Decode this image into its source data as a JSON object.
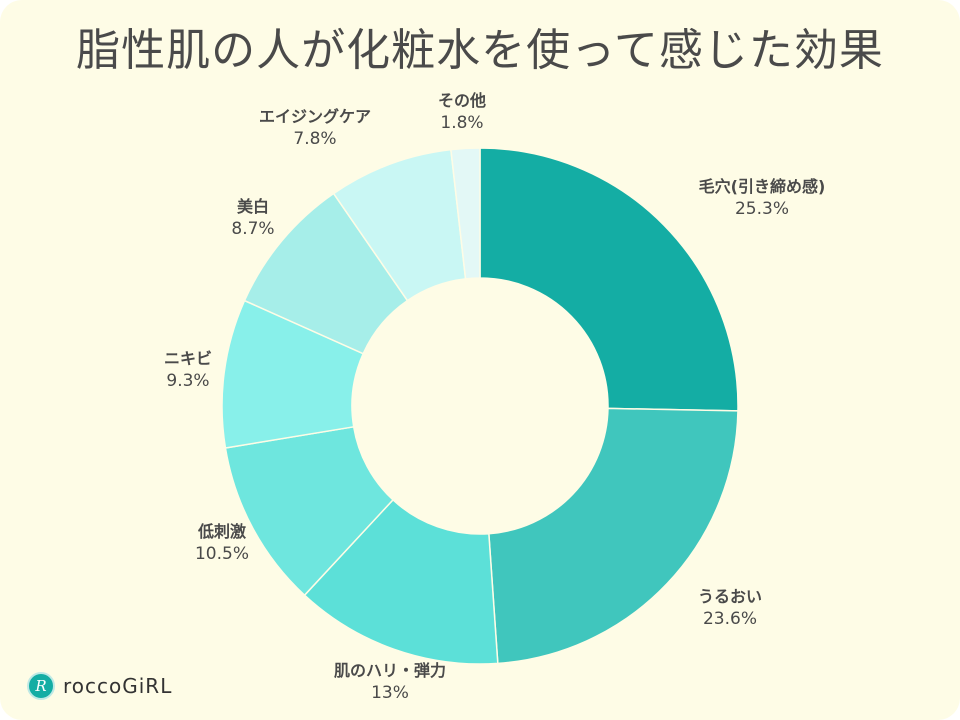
{
  "chart_data": {
    "type": "pie",
    "donut": true,
    "title": "脂性肌の人が化粧水を使って感じた効果",
    "start": "top",
    "direction": "clockwise",
    "slices": [
      {
        "label": "毛穴(引き締め感)",
        "value": 25.3,
        "display": "25.3%",
        "color": "#14ada4"
      },
      {
        "label": "うるおい",
        "value": 23.6,
        "display": "23.6%",
        "color": "#40c6bd"
      },
      {
        "label": "肌のハリ・弾力",
        "value": 13,
        "display": "13%",
        "color": "#5ce0d8"
      },
      {
        "label": "低刺激",
        "value": 10.5,
        "display": "10.5%",
        "color": "#6ee6de"
      },
      {
        "label": "ニキビ",
        "value": 9.3,
        "display": "9.3%",
        "color": "#88f0ea"
      },
      {
        "label": "美白",
        "value": 8.7,
        "display": "8.7%",
        "color": "#a6eee9"
      },
      {
        "label": "エイジングケア",
        "value": 7.8,
        "display": "7.8%",
        "color": "#c9f7f4"
      },
      {
        "label": "その他",
        "value": 1.8,
        "display": "1.8%",
        "color": "#e3f8f6"
      }
    ]
  },
  "brand": {
    "name": "roccoGiRL",
    "mark": "R",
    "color": "#14ada4"
  },
  "background": "#fefce6"
}
